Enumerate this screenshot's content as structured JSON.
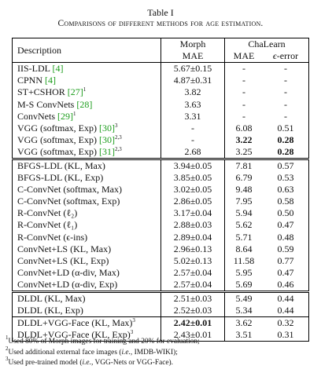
{
  "caption": {
    "number": "Table I",
    "title": "Comparisons of different methods for age estimation."
  },
  "header": {
    "description": "Description",
    "morph_top": "Morph",
    "morph_sub": "MAE",
    "chalearn_top": "ChaLearn",
    "chalearn_mae": "MAE",
    "chalearn_eps": "ϵ-error"
  },
  "groups": [
    [
      {
        "name": "IIS-LDL",
        "cite": "[4]",
        "sup": "",
        "morph": "5.67±0.15",
        "mae": "-",
        "eps": "-"
      },
      {
        "name": "CPNN",
        "cite": "[4]",
        "sup": "",
        "morph": "4.87±0.31",
        "mae": "-",
        "eps": "-"
      },
      {
        "name": "ST+CSHOR",
        "cite": "[27]",
        "sup": "1",
        "morph": "3.82",
        "mae": "-",
        "eps": "-"
      },
      {
        "name": "M-S ConvNets",
        "cite": "[28]",
        "sup": "",
        "morph": "3.63",
        "mae": "-",
        "eps": "-"
      },
      {
        "name": "ConvNets",
        "cite": "[29]",
        "sup": "1",
        "morph": "3.31",
        "mae": "-",
        "eps": "-"
      },
      {
        "name": "VGG (softmax, Exp)",
        "cite": "[30]",
        "sup": "3",
        "morph": "-",
        "mae": "6.08",
        "eps": "0.51"
      },
      {
        "name": "VGG (softmax, Exp)",
        "cite": "[30]",
        "sup": "2,3",
        "morph": "-",
        "mae": "3.22",
        "eps": "0.28",
        "bold_mae": true,
        "bold_eps": true
      },
      {
        "name": "VGG (softmax, Exp)",
        "cite": "[31]",
        "sup": "2,3",
        "morph": "2.68",
        "mae": "3.25",
        "eps": "0.28",
        "bold_eps": true
      }
    ],
    [
      {
        "name": "BFGS-LDL (KL, Max)",
        "morph": "3.94±0.05",
        "mae": "7.81",
        "eps": "0.57"
      },
      {
        "name": "BFGS-LDL (KL, Exp)",
        "morph": "3.85±0.05",
        "mae": "6.79",
        "eps": "0.53"
      },
      {
        "name": "C-ConvNet (softmax, Max)",
        "morph": "3.02±0.05",
        "mae": "9.48",
        "eps": "0.63"
      },
      {
        "name": "C-ConvNet (softmax, Exp)",
        "morph": "2.86±0.05",
        "mae": "7.95",
        "eps": "0.58"
      },
      {
        "name": "R-ConvNet (ℓ₂)",
        "morph": "3.17±0.04",
        "mae": "5.94",
        "eps": "0.50"
      },
      {
        "name": "R-ConvNet (ℓ₁)",
        "morph": "2.88±0.03",
        "mae": "5.62",
        "eps": "0.47"
      },
      {
        "name": "R-ConvNet (ϵ-ins)",
        "morph": "2.89±0.04",
        "mae": "5.71",
        "eps": "0.48"
      },
      {
        "name": "ConvNet+LS (KL, Max)",
        "morph": "2.96±0.13",
        "mae": "8.64",
        "eps": "0.59"
      },
      {
        "name": "ConvNet+LS (KL, Exp)",
        "morph": "5.02±0.13",
        "mae": "11.58",
        "eps": "0.77"
      },
      {
        "name": "ConvNet+LD (α-div, Max)",
        "morph": "2.57±0.04",
        "mae": "5.95",
        "eps": "0.47"
      },
      {
        "name": "ConvNet+LD (α-div, Exp)",
        "morph": "2.57±0.04",
        "mae": "5.69",
        "eps": "0.46"
      }
    ],
    [
      {
        "name": "DLDL (KL, Max)",
        "morph": "2.51±0.03",
        "mae": "5.49",
        "eps": "0.44"
      },
      {
        "name": "DLDL (KL, Exp)",
        "morph": "2.52±0.03",
        "mae": "5.34",
        "eps": "0.44"
      }
    ],
    [
      {
        "name": "DLDL+VGG-Face (KL, Max)",
        "sup": "3",
        "morph": "2.42±0.01",
        "mae": "3.62",
        "eps": "0.32",
        "bold_morph": true
      },
      {
        "name": "DLDL+VGG-Face (KL, Exp)",
        "sup": "3",
        "morph": "2.43±0.01",
        "mae": "3.51",
        "eps": "0.31"
      }
    ]
  ],
  "footnotes": [
    {
      "mark": "1",
      "text": "Used 80% of Morph images for training and 20% for evaluation;"
    },
    {
      "mark": "2",
      "text": "Used additional external face images (i.e., IMDB-WIKI);"
    },
    {
      "mark": "3",
      "text": "Used pre-trained model (i.e., VGG-Nets or VGG-Face)."
    }
  ]
}
